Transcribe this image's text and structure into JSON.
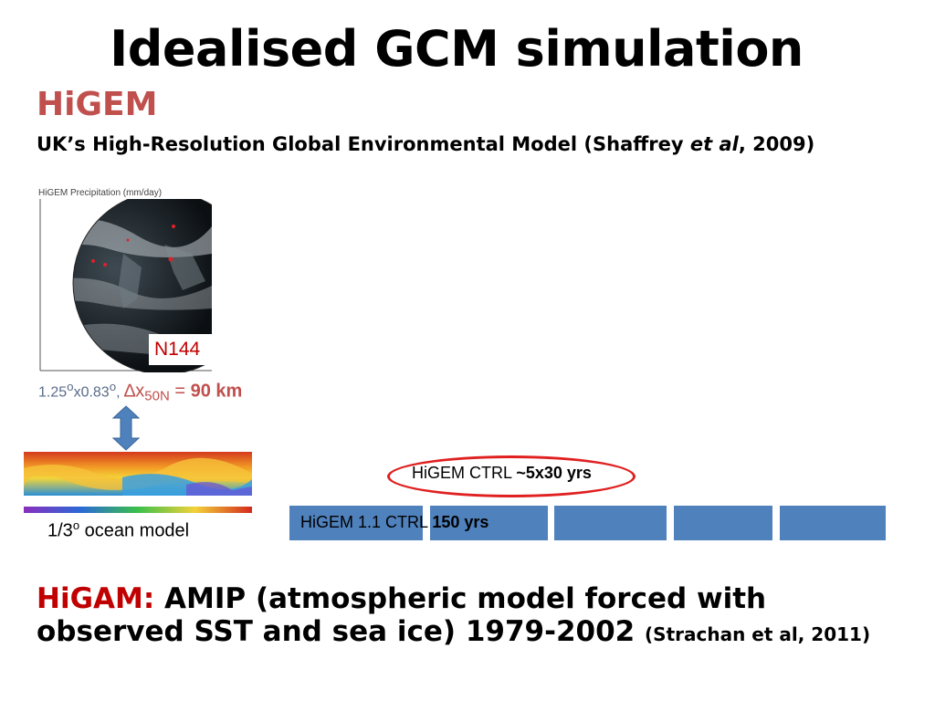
{
  "slide": {
    "title": "Idealised GCM simulation",
    "subtitle": "HiGEM",
    "description": {
      "before": "UK’s High-Resolution Global Environmental Model (Shaffrey ",
      "italic": "et al",
      "after": ", 2009)"
    }
  },
  "globe_figure": {
    "caption": "HiGEM Precipitation (mm/day)",
    "label": "N144",
    "resolution": {
      "grid": "1.25",
      "sup1": "o",
      "mid": "x0.83",
      "sup2": "o",
      "comma": ", ",
      "delta": "∆x",
      "sub": "50N",
      "eq": " = ",
      "value": "90 km"
    }
  },
  "ocean_figure": {
    "label_prefix": "1/3",
    "label_sup": "o",
    "label_suffix": " ocean model"
  },
  "timeline": {
    "bar_label_normal": "HiGEM 1.1 CTRL ",
    "bar_label_bold": "150 yrs",
    "ctrl_label_normal": "HiGEM CTRL ",
    "ctrl_label_bold": "~5x30 yrs",
    "bar_color": "#4f81bd",
    "oval_color": "#e02020"
  },
  "higam": {
    "label": "HiGAM:",
    "text": " AMIP (atmospheric model forced with observed SST and sea ice) 1979-2002 ",
    "citation": "(Strachan et al, 2011)"
  },
  "colors": {
    "subtitle": "#c0504d",
    "higam_label": "#c00000",
    "n144": "#c00000"
  }
}
